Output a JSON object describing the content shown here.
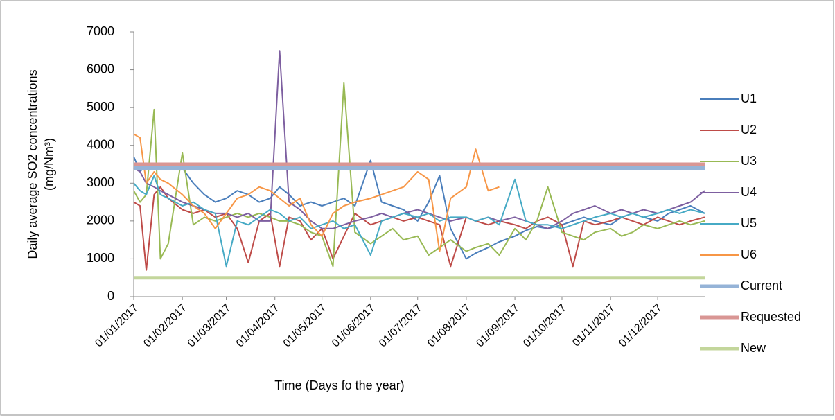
{
  "chart_data": {
    "type": "line",
    "y_label": [
      "Daily average SO2 concentrations",
      "(mg/Nm³)"
    ],
    "x_label": "Time (Days fo the year)",
    "x": [
      "01/01/2017",
      "05/01/2017",
      "09/01/2017",
      "14/01/2017",
      "18/01/2017",
      "23/01/2017",
      "01/02/2017",
      "08/02/2017",
      "15/02/2017",
      "22/02/2017",
      "01/03/2017",
      "08/03/2017",
      "15/03/2017",
      "22/03/2017",
      "29/03/2017",
      "04/04/2017",
      "10/04/2017",
      "17/04/2017",
      "24/04/2017",
      "01/05/2017",
      "08/05/2017",
      "15/05/2017",
      "22/05/2017",
      "01/06/2017",
      "08/06/2017",
      "15/06/2017",
      "22/06/2017",
      "01/07/2017",
      "08/07/2017",
      "15/07/2017",
      "22/07/2017",
      "01/08/2017",
      "07/08/2017",
      "15/08/2017",
      "22/08/2017",
      "01/09/2017",
      "08/09/2017",
      "15/09/2017",
      "22/09/2017",
      "01/10/2017",
      "08/10/2017",
      "15/10/2017",
      "22/10/2017",
      "01/11/2017",
      "08/11/2017",
      "15/11/2017",
      "22/11/2017",
      "01/12/2017",
      "08/12/2017",
      "15/12/2017",
      "22/12/2017",
      "31/12/2017"
    ],
    "series": [
      {
        "name": "U1",
        "color": "#4a7ebb",
        "values": [
          3700,
          3300,
          3500,
          3400,
          3500,
          3400,
          3400,
          3000,
          2700,
          2500,
          2600,
          2800,
          2700,
          2500,
          2600,
          2900,
          2700,
          2400,
          2500,
          2400,
          2500,
          2600,
          2400,
          3600,
          2500,
          2400,
          2300,
          2000,
          2500,
          3200,
          1800,
          1000,
          1150,
          1300,
          1450,
          1600,
          1750,
          1850,
          1800,
          1900,
          2000,
          2100,
          2000,
          1900,
          2100,
          2200,
          2100,
          2000,
          2200,
          2300,
          2400,
          2200
        ]
      },
      {
        "name": "U2",
        "color": "#be4b48",
        "values": [
          2500,
          2400,
          700,
          2700,
          2900,
          2600,
          2300,
          2200,
          2300,
          2100,
          2200,
          1800,
          900,
          2000,
          2200,
          800,
          2100,
          2000,
          1500,
          1800,
          1000,
          1600,
          2200,
          1900,
          2000,
          2100,
          2000,
          2100,
          2000,
          1900,
          800,
          2100,
          2000,
          1900,
          2000,
          1900,
          1800,
          2000,
          2100,
          1900,
          800,
          2000,
          1900,
          2000,
          2100,
          2000,
          1900,
          2100,
          2000,
          1900,
          2000,
          2100
        ]
      },
      {
        "name": "U3",
        "color": "#98b954",
        "values": [
          2800,
          2500,
          2700,
          4950,
          1000,
          1400,
          3800,
          1900,
          2100,
          2000,
          2100,
          2200,
          2100,
          2200,
          2100,
          2000,
          2000,
          1900,
          1700,
          1600,
          800,
          5650,
          1700,
          1400,
          1600,
          1800,
          1500,
          1600,
          1100,
          1300,
          1500,
          1200,
          1300,
          1400,
          1100,
          1800,
          1500,
          2000,
          2900,
          1700,
          1600,
          1500,
          1700,
          1800,
          1600,
          1700,
          1900,
          1800,
          1900,
          2000,
          1900,
          2000
        ]
      },
      {
        "name": "U4",
        "color": "#7d5fa0",
        "values": [
          3400,
          3300,
          3000,
          2900,
          2800,
          2700,
          2500,
          2400,
          2300,
          2200,
          2200,
          2100,
          2200,
          2000,
          2000,
          6500,
          2500,
          2300,
          2000,
          1800,
          1800,
          1900,
          2000,
          2100,
          2200,
          2100,
          2200,
          2300,
          2200,
          2100,
          2000,
          2100,
          2000,
          2100,
          2000,
          2100,
          2000,
          1900,
          1800,
          2000,
          2200,
          2300,
          2400,
          2200,
          2300,
          2200,
          2300,
          2200,
          2300,
          2400,
          2500,
          2800
        ]
      },
      {
        "name": "U5",
        "color": "#46aac5",
        "values": [
          3000,
          2800,
          2700,
          3200,
          2700,
          2600,
          2400,
          2500,
          2300,
          2200,
          800,
          2000,
          1900,
          2100,
          2300,
          2200,
          2000,
          2100,
          1800,
          1900,
          2000,
          1800,
          1900,
          1100,
          2000,
          2100,
          2200,
          2100,
          2200,
          2000,
          2100,
          2100,
          2000,
          2100,
          1900,
          3100,
          2000,
          1900,
          1900,
          1800,
          1900,
          2000,
          2100,
          2200,
          2100,
          2200,
          2100,
          2200,
          2300,
          2200,
          2300,
          2200
        ]
      },
      {
        "name": "U6",
        "color": "#f79646",
        "values": [
          4300,
          4200,
          3000,
          3300,
          3100,
          3000,
          2700,
          2400,
          2200,
          1800,
          2200,
          2600,
          2700,
          2900,
          2800,
          2600,
          2400,
          2600,
          1900,
          1600,
          2200,
          2400,
          2500,
          2600,
          2700,
          2800,
          2900,
          3300,
          3100,
          1200,
          2600,
          2900,
          3900,
          2800,
          2900,
          null,
          null,
          null,
          null,
          null,
          null,
          null,
          null,
          null,
          null,
          null,
          null,
          null,
          null,
          null,
          null,
          null
        ]
      },
      {
        "name": "Current",
        "color": "#95b3d7",
        "value": 3400
      },
      {
        "name": "Requested",
        "color": "#d99694",
        "value": 3500
      },
      {
        "name": "New",
        "color": "#c3d69b",
        "value": 500
      }
    ],
    "xlim": [
      "01/01/2017",
      "31/12/2017"
    ],
    "xticks": [
      "01/01/2017",
      "01/02/2017",
      "01/03/2017",
      "01/04/2017",
      "01/05/2017",
      "01/06/2017",
      "01/07/2017",
      "01/08/2017",
      "01/09/2017",
      "01/10/2017",
      "01/11/2017",
      "01/12/2017"
    ],
    "ylim": [
      0,
      7000
    ],
    "yticks": [
      0,
      1000,
      2000,
      3000,
      4000,
      5000,
      6000,
      7000
    ],
    "legend": "right"
  }
}
